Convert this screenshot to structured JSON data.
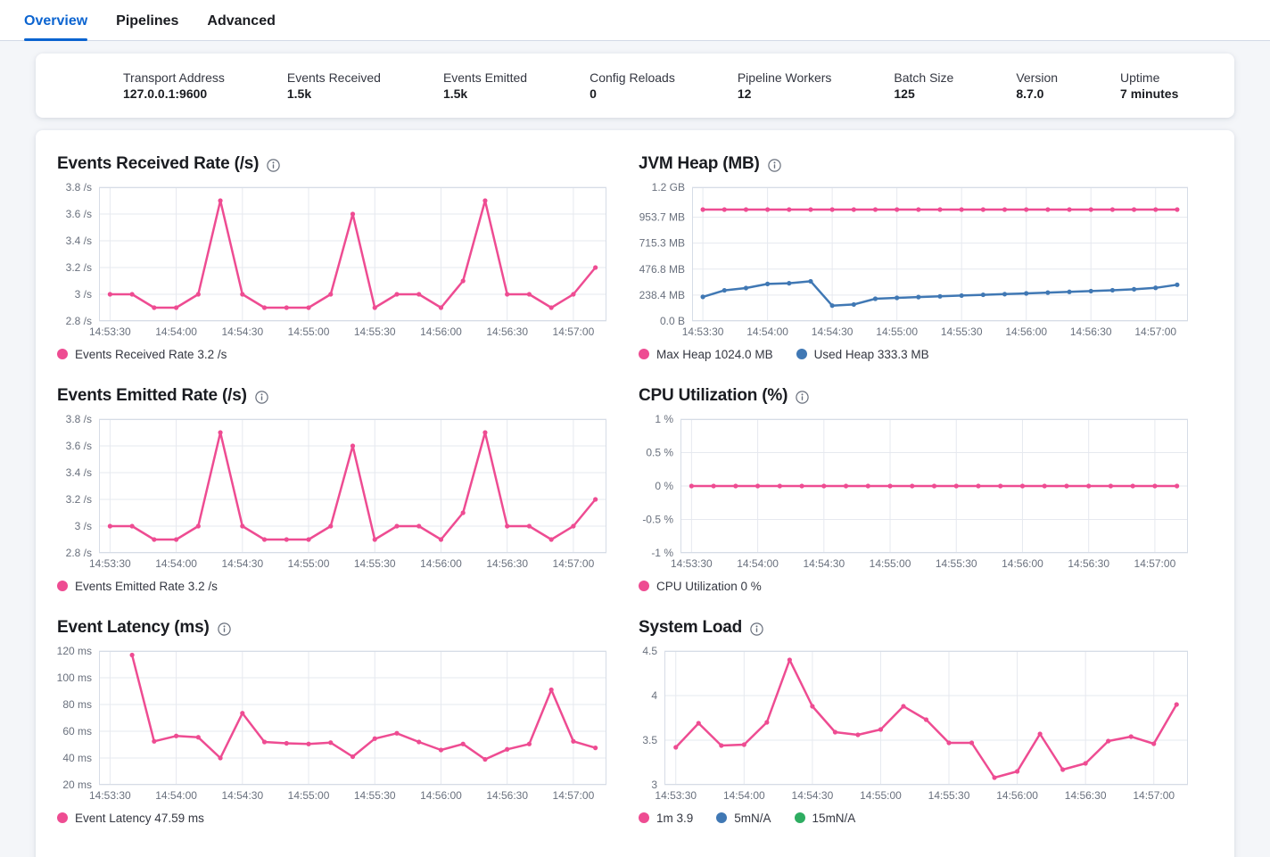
{
  "tabs": [
    {
      "label": "Overview",
      "active": true
    },
    {
      "label": "Pipelines",
      "active": false
    },
    {
      "label": "Advanced",
      "active": false
    }
  ],
  "stats": {
    "items": [
      {
        "label": "Transport Address",
        "value": "127.0.0.1:9600"
      },
      {
        "label": "Events Received",
        "value": "1.5k"
      },
      {
        "label": "Events Emitted",
        "value": "1.5k"
      },
      {
        "label": "Config Reloads",
        "value": "0"
      },
      {
        "label": "Pipeline Workers",
        "value": "12"
      },
      {
        "label": "Batch Size",
        "value": "125"
      },
      {
        "label": "Version",
        "value": "8.7.0"
      },
      {
        "label": "Uptime",
        "value": "7 minutes"
      }
    ]
  },
  "colors": {
    "pink": "#EE4C92",
    "blue": "#4078B4",
    "green": "#2EAD61",
    "tab_active": "#0B64D0"
  },
  "chart_data": [
    {
      "type": "line",
      "title": "Events Received Rate (/s)",
      "x_domain": [
        -5,
        225
      ],
      "y_domain": [
        2.8,
        3.8
      ],
      "x_ticks": [
        {
          "t": 0,
          "label": "14:53:30"
        },
        {
          "t": 30,
          "label": "14:54:00"
        },
        {
          "t": 60,
          "label": "14:54:30"
        },
        {
          "t": 90,
          "label": "14:55:00"
        },
        {
          "t": 120,
          "label": "14:55:30"
        },
        {
          "t": 150,
          "label": "14:56:00"
        },
        {
          "t": 180,
          "label": "14:56:30"
        },
        {
          "t": 210,
          "label": "14:57:00"
        }
      ],
      "y_ticks": [
        {
          "v": 2.8,
          "label": "2.8 /s"
        },
        {
          "v": 3,
          "label": "3 /s"
        },
        {
          "v": 3.2,
          "label": "3.2 /s"
        },
        {
          "v": 3.4,
          "label": "3.4 /s"
        },
        {
          "v": 3.6,
          "label": "3.6 /s"
        },
        {
          "v": 3.8,
          "label": "3.8 /s"
        }
      ],
      "series": [
        {
          "name": "Events Received Rate",
          "color": "#EE4C92",
          "x_start": 0,
          "x_step": 10,
          "values": [
            3,
            3,
            2.9,
            2.9,
            3,
            3.7,
            3,
            2.9,
            2.9,
            2.9,
            3,
            3.6,
            2.9,
            3,
            3,
            2.9,
            3.1,
            3.7,
            3,
            3,
            2.9,
            3,
            3.2
          ]
        }
      ],
      "legend": [
        {
          "color": "#EE4C92",
          "text": "Events Received Rate 3.2 /s"
        }
      ]
    },
    {
      "type": "line",
      "title": "JVM Heap (MB)",
      "x_domain": [
        -5,
        225
      ],
      "y_domain": [
        0,
        1228.8
      ],
      "x_ticks": [
        {
          "t": 0,
          "label": "14:53:30"
        },
        {
          "t": 30,
          "label": "14:54:00"
        },
        {
          "t": 60,
          "label": "14:54:30"
        },
        {
          "t": 90,
          "label": "14:55:00"
        },
        {
          "t": 120,
          "label": "14:55:30"
        },
        {
          "t": 150,
          "label": "14:56:00"
        },
        {
          "t": 180,
          "label": "14:56:30"
        },
        {
          "t": 210,
          "label": "14:57:00"
        }
      ],
      "y_ticks": [
        {
          "v": 0,
          "label": "0.0 B"
        },
        {
          "v": 238.4,
          "label": "238.4 MB"
        },
        {
          "v": 476.8,
          "label": "476.8 MB"
        },
        {
          "v": 715.3,
          "label": "715.3 MB"
        },
        {
          "v": 953.7,
          "label": "953.7 MB"
        },
        {
          "v": 1228.8,
          "label": "1.2 GB"
        }
      ],
      "series": [
        {
          "name": "Max Heap",
          "color": "#EE4C92",
          "x_start": 0,
          "x_step": 10,
          "values": [
            1024,
            1024,
            1024,
            1024,
            1024,
            1024,
            1024,
            1024,
            1024,
            1024,
            1024,
            1024,
            1024,
            1024,
            1024,
            1024,
            1024,
            1024,
            1024,
            1024,
            1024,
            1024,
            1024
          ]
        },
        {
          "name": "Used Heap",
          "color": "#4078B4",
          "x_start": 0,
          "x_step": 10,
          "values": [
            222,
            282,
            303,
            341,
            347,
            365,
            142,
            152,
            205,
            213,
            220,
            227,
            234,
            241,
            247,
            254,
            261,
            268,
            275,
            283,
            292,
            305,
            333.3
          ]
        }
      ],
      "legend": [
        {
          "color": "#EE4C92",
          "text": "Max Heap 1024.0 MB"
        },
        {
          "color": "#4078B4",
          "text": "Used Heap 333.3 MB"
        }
      ]
    },
    {
      "type": "line",
      "title": "Events Emitted Rate (/s)",
      "x_domain": [
        -5,
        225
      ],
      "y_domain": [
        2.8,
        3.8
      ],
      "x_ticks": [
        {
          "t": 0,
          "label": "14:53:30"
        },
        {
          "t": 30,
          "label": "14:54:00"
        },
        {
          "t": 60,
          "label": "14:54:30"
        },
        {
          "t": 90,
          "label": "14:55:00"
        },
        {
          "t": 120,
          "label": "14:55:30"
        },
        {
          "t": 150,
          "label": "14:56:00"
        },
        {
          "t": 180,
          "label": "14:56:30"
        },
        {
          "t": 210,
          "label": "14:57:00"
        }
      ],
      "y_ticks": [
        {
          "v": 2.8,
          "label": "2.8 /s"
        },
        {
          "v": 3,
          "label": "3 /s"
        },
        {
          "v": 3.2,
          "label": "3.2 /s"
        },
        {
          "v": 3.4,
          "label": "3.4 /s"
        },
        {
          "v": 3.6,
          "label": "3.6 /s"
        },
        {
          "v": 3.8,
          "label": "3.8 /s"
        }
      ],
      "series": [
        {
          "name": "Events Emitted Rate",
          "color": "#EE4C92",
          "x_start": 0,
          "x_step": 10,
          "values": [
            3,
            3,
            2.9,
            2.9,
            3,
            3.7,
            3,
            2.9,
            2.9,
            2.9,
            3,
            3.6,
            2.9,
            3,
            3,
            2.9,
            3.1,
            3.7,
            3,
            3,
            2.9,
            3,
            3.2
          ]
        }
      ],
      "legend": [
        {
          "color": "#EE4C92",
          "text": "Events Emitted Rate 3.2 /s"
        }
      ]
    },
    {
      "type": "line",
      "title": "CPU Utilization (%)",
      "x_domain": [
        -5,
        225
      ],
      "y_domain": [
        -1,
        1
      ],
      "x_ticks": [
        {
          "t": 0,
          "label": "14:53:30"
        },
        {
          "t": 30,
          "label": "14:54:00"
        },
        {
          "t": 60,
          "label": "14:54:30"
        },
        {
          "t": 90,
          "label": "14:55:00"
        },
        {
          "t": 120,
          "label": "14:55:30"
        },
        {
          "t": 150,
          "label": "14:56:00"
        },
        {
          "t": 180,
          "label": "14:56:30"
        },
        {
          "t": 210,
          "label": "14:57:00"
        }
      ],
      "y_ticks": [
        {
          "v": -1,
          "label": "-1 %"
        },
        {
          "v": -0.5,
          "label": "-0.5 %"
        },
        {
          "v": 0,
          "label": "0 %"
        },
        {
          "v": 0.5,
          "label": "0.5 %"
        },
        {
          "v": 1,
          "label": "1 %"
        }
      ],
      "series": [
        {
          "name": "CPU Utilization",
          "color": "#EE4C92",
          "x_start": 0,
          "x_step": 10,
          "values": [
            0,
            0,
            0,
            0,
            0,
            0,
            0,
            0,
            0,
            0,
            0,
            0,
            0,
            0,
            0,
            0,
            0,
            0,
            0,
            0,
            0,
            0,
            0
          ]
        }
      ],
      "legend": [
        {
          "color": "#EE4C92",
          "text": "CPU Utilization 0 %"
        }
      ]
    },
    {
      "type": "line",
      "title": "Event Latency (ms)",
      "x_domain": [
        -5,
        225
      ],
      "y_domain": [
        20,
        120
      ],
      "x_ticks": [
        {
          "t": 0,
          "label": "14:53:30"
        },
        {
          "t": 30,
          "label": "14:54:00"
        },
        {
          "t": 60,
          "label": "14:54:30"
        },
        {
          "t": 90,
          "label": "14:55:00"
        },
        {
          "t": 120,
          "label": "14:55:30"
        },
        {
          "t": 150,
          "label": "14:56:00"
        },
        {
          "t": 180,
          "label": "14:56:30"
        },
        {
          "t": 210,
          "label": "14:57:00"
        }
      ],
      "y_ticks": [
        {
          "v": 20,
          "label": "20 ms"
        },
        {
          "v": 40,
          "label": "40 ms"
        },
        {
          "v": 60,
          "label": "60 ms"
        },
        {
          "v": 80,
          "label": "80 ms"
        },
        {
          "v": 100,
          "label": "100 ms"
        },
        {
          "v": 120,
          "label": "120 ms"
        }
      ],
      "series": [
        {
          "name": "Event Latency",
          "color": "#EE4C92",
          "x_start": 10,
          "x_step": 10,
          "values": [
            117,
            52.5,
            56.5,
            55.5,
            40,
            73.5,
            52,
            51,
            50.5,
            51.5,
            41,
            54.5,
            58.5,
            52,
            46,
            50.5,
            39,
            46.5,
            50.5,
            91,
            52.5,
            47.59
          ]
        }
      ],
      "legend": [
        {
          "color": "#EE4C92",
          "text": "Event Latency 47.59 ms"
        }
      ]
    },
    {
      "type": "line",
      "title": "System Load",
      "x_domain": [
        -5,
        225
      ],
      "y_domain": [
        3,
        4.5
      ],
      "x_ticks": [
        {
          "t": 0,
          "label": "14:53:30"
        },
        {
          "t": 30,
          "label": "14:54:00"
        },
        {
          "t": 60,
          "label": "14:54:30"
        },
        {
          "t": 90,
          "label": "14:55:00"
        },
        {
          "t": 120,
          "label": "14:55:30"
        },
        {
          "t": 150,
          "label": "14:56:00"
        },
        {
          "t": 180,
          "label": "14:56:30"
        },
        {
          "t": 210,
          "label": "14:57:00"
        }
      ],
      "y_ticks": [
        {
          "v": 3,
          "label": "3"
        },
        {
          "v": 3.5,
          "label": "3.5"
        },
        {
          "v": 4,
          "label": "4"
        },
        {
          "v": 4.5,
          "label": "4.5"
        }
      ],
      "series": [
        {
          "name": "1m",
          "color": "#EE4C92",
          "x_start": 0,
          "x_step": 10,
          "values": [
            3.42,
            3.69,
            3.44,
            3.45,
            3.7,
            4.4,
            3.88,
            3.59,
            3.56,
            3.62,
            3.88,
            3.73,
            3.47,
            3.47,
            3.08,
            3.15,
            3.57,
            3.17,
            3.24,
            3.49,
            3.54,
            3.46,
            3.9
          ]
        }
      ],
      "legend": [
        {
          "color": "#EE4C92",
          "text": "1m 3.9"
        },
        {
          "color": "#4078B4",
          "text": "5mN/A"
        },
        {
          "color": "#2EAD61",
          "text": "15mN/A"
        }
      ]
    }
  ]
}
